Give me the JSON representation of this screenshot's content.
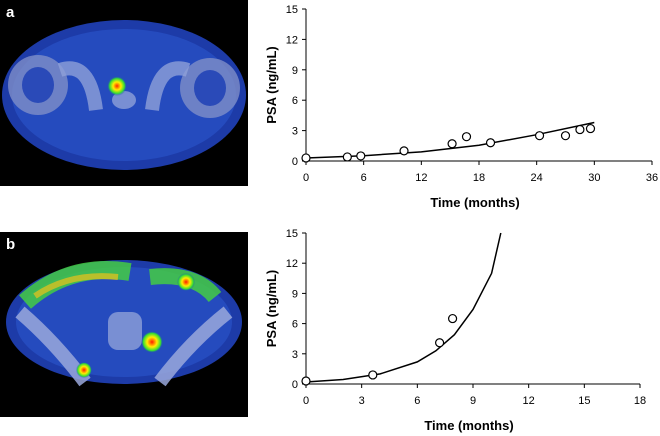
{
  "panels": [
    {
      "label": "a"
    },
    {
      "label": "b"
    }
  ],
  "chart_data": [
    {
      "type": "scatter",
      "title": "",
      "xlabel": "Time (months)",
      "ylabel": "PSA (ng/mL)",
      "xlim": [
        0,
        36
      ],
      "ylim": [
        0,
        15
      ],
      "xticks": [
        0,
        6,
        12,
        18,
        24,
        30,
        36
      ],
      "yticks": [
        0,
        3,
        6,
        9,
        12,
        15
      ],
      "grid": false,
      "points": [
        {
          "x": 0,
          "y": 0.3
        },
        {
          "x": 4.3,
          "y": 0.4
        },
        {
          "x": 5.7,
          "y": 0.5
        },
        {
          "x": 10.2,
          "y": 1.0
        },
        {
          "x": 15.2,
          "y": 1.7
        },
        {
          "x": 16.7,
          "y": 2.4
        },
        {
          "x": 19.2,
          "y": 1.8
        },
        {
          "x": 24.3,
          "y": 2.5
        },
        {
          "x": 27.0,
          "y": 2.5
        },
        {
          "x": 28.5,
          "y": 3.1
        },
        {
          "x": 29.6,
          "y": 3.2
        }
      ],
      "fit_curve": [
        {
          "x": 0,
          "y": 0.3
        },
        {
          "x": 6,
          "y": 0.52
        },
        {
          "x": 12,
          "y": 0.9
        },
        {
          "x": 18,
          "y": 1.55
        },
        {
          "x": 24,
          "y": 2.6
        },
        {
          "x": 30,
          "y": 3.8
        }
      ]
    },
    {
      "type": "scatter",
      "title": "",
      "xlabel": "Time (months)",
      "ylabel": "PSA (ng/mL)",
      "xlim": [
        0,
        18
      ],
      "ylim": [
        0,
        15
      ],
      "xticks": [
        0,
        3,
        6,
        9,
        12,
        15,
        18
      ],
      "yticks": [
        0,
        3,
        6,
        9,
        12,
        15
      ],
      "grid": false,
      "points": [
        {
          "x": 0,
          "y": 0.3
        },
        {
          "x": 3.6,
          "y": 0.9
        },
        {
          "x": 7.2,
          "y": 4.1
        },
        {
          "x": 7.9,
          "y": 6.5
        }
      ],
      "fit_curve": [
        {
          "x": 0,
          "y": 0.2
        },
        {
          "x": 2,
          "y": 0.45
        },
        {
          "x": 4,
          "y": 1.0
        },
        {
          "x": 6,
          "y": 2.2
        },
        {
          "x": 7,
          "y": 3.3
        },
        {
          "x": 8,
          "y": 4.9
        },
        {
          "x": 9,
          "y": 7.4
        },
        {
          "x": 10,
          "y": 11.0
        },
        {
          "x": 10.5,
          "y": 15.0
        }
      ]
    }
  ]
}
